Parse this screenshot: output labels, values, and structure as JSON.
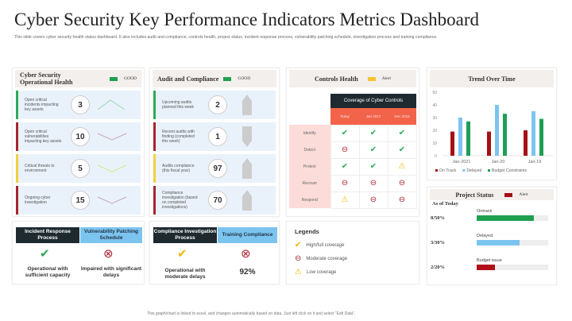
{
  "title": "Cyber Security Key Performance Indicators Metrics Dashboard",
  "subtitle": "This slide covers cyber security health status dashboard. It also includes audit and compliance, controls health, project status, incident response process, vulnerability patching schedule, investigation process and training compliance.",
  "ops": {
    "title": "Cyber Security Operational Health",
    "status": "GOOD",
    "rows": [
      {
        "label": "Open critical incidents impacting key assets",
        "value": "3",
        "color": "#2eaa55"
      },
      {
        "label": "Open critical vulnerabilities impacting key assets",
        "value": "10",
        "color": "#a8242e"
      },
      {
        "label": "Critical threats to environment",
        "value": "5",
        "color": "#f0d040"
      },
      {
        "label": "Ongoing cyber investigation",
        "value": "15",
        "color": "#a8242e"
      }
    ]
  },
  "audit": {
    "title": "Audit and Compliance",
    "status": "GOOD",
    "rows": [
      {
        "label": "Upcoming audits planned this week",
        "value": "2",
        "color": "#2eaa55"
      },
      {
        "label": "Recent audits with finding (completed this week)",
        "value": "1",
        "color": "#a8242e"
      },
      {
        "label": "Audits compliance (this fiscal year)",
        "value": "97",
        "color": "#f0d040"
      },
      {
        "label": "Compliance investigation (based on completed investigations)",
        "value": "70",
        "color": "#a8242e"
      }
    ]
  },
  "process": {
    "incident": {
      "label": "Incident Response Process",
      "caption": "Operational with sufficient capacity"
    },
    "vuln": {
      "label": "Vulnerability Patching Schedule",
      "caption": "Impaired with significant delays"
    },
    "compliance": {
      "label": "Compliance Investigation Process",
      "caption": "Operational with moderate delays"
    },
    "training": {
      "label": "Training Compliance",
      "caption": "92%"
    }
  },
  "controls": {
    "title": "Controls Health",
    "status": "Alert",
    "table_title": "Coverage of Cyber Controls",
    "cols": [
      "Today",
      "Jan 2017",
      "Dec 2016"
    ],
    "rows": [
      {
        "label": "Identify",
        "cells": [
          "high",
          "high",
          "high"
        ]
      },
      {
        "label": "Detect",
        "cells": [
          "moderate",
          "high",
          "high"
        ]
      },
      {
        "label": "Protect",
        "cells": [
          "high",
          "high",
          "low"
        ]
      },
      {
        "label": "Recover",
        "cells": [
          "moderate",
          "moderate",
          "moderate"
        ]
      },
      {
        "label": "Respond",
        "cells": [
          "low",
          "moderate",
          "moderate"
        ]
      }
    ]
  },
  "legends": {
    "title": "Legends",
    "items": [
      "High/full coverage",
      "Moderate coverage",
      "Low coverage"
    ]
  },
  "chart_data": {
    "type": "bar",
    "title": "Trend Over Time",
    "categories": [
      "Jan-2021",
      "Jan-20",
      "Jan-19"
    ],
    "ylim": [
      0,
      50
    ],
    "yticks": [
      "0",
      "10",
      "20",
      "30",
      "40",
      "50"
    ],
    "series": [
      {
        "name": "On Track",
        "color": "#a50f15",
        "values": [
          19,
          19,
          20
        ]
      },
      {
        "name": "Delayed",
        "color": "#7cc4f0",
        "values": [
          30,
          40,
          35
        ]
      },
      {
        "name": "Budget Constraints",
        "color": "#1f9e55",
        "values": [
          27,
          33,
          29
        ]
      }
    ],
    "legend": "bottom"
  },
  "project": {
    "title": "Project Status",
    "status": "Alert",
    "subtitle": "As of Today",
    "items": [
      {
        "label": "Ontrack",
        "value": "8/50%",
        "fill": 0.8,
        "color": "#1fa050"
      },
      {
        "label": "Delayed",
        "value": "3/30%",
        "fill": 0.6,
        "color": "#7cc4f0"
      },
      {
        "label": "Budget issue",
        "value": "2/20%",
        "fill": 0.25,
        "color": "#b01018"
      }
    ]
  },
  "footer": "This graph/chart is linked to excel, and changes automatically based on data. Just left click on it and select \"Edit Data\"."
}
